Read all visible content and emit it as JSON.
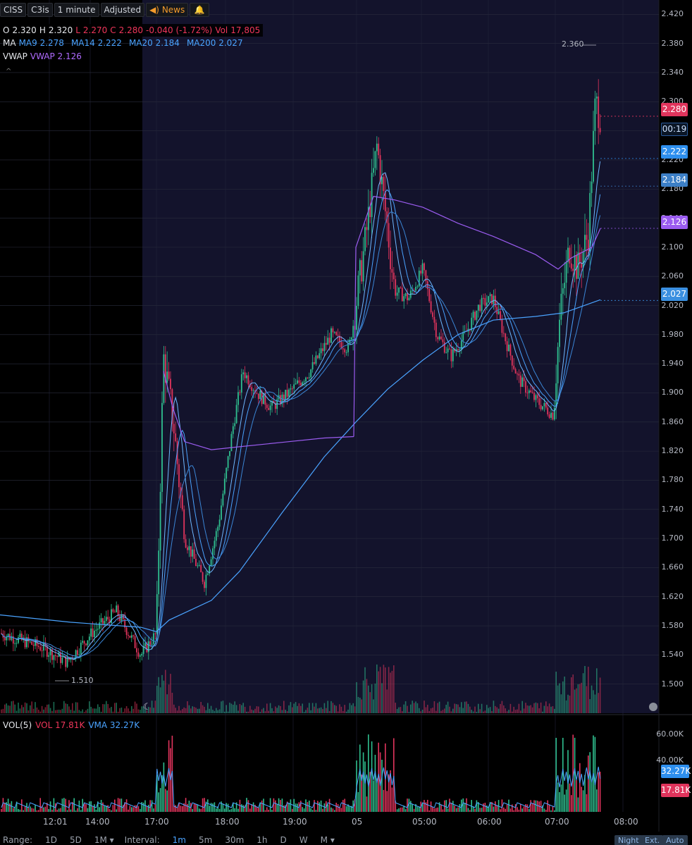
{
  "header": {
    "symbol": "CISS",
    "study_set": "C3is",
    "interval": "1 minute",
    "adjusted": "Adjusted",
    "news": "News"
  },
  "ohlc": {
    "o_label": "O",
    "o": "2.320",
    "h_label": "H",
    "h": "2.320",
    "l_label": "L",
    "l": "2.270",
    "c_label": "C",
    "c": "2.280",
    "change": "-0.040 (-1.72%)",
    "vol_label": "Vol",
    "vol": "17,805"
  },
  "ma": {
    "label": "MA",
    "ma9": "MA9 2.278",
    "ma14": "MA14 2.222",
    "ma20": "MA20 2.184",
    "ma200": "MA200 2.027"
  },
  "vwap": {
    "label": "VWAP",
    "value": "VWAP 2.126"
  },
  "price_axis": [
    "2.420",
    "2.380",
    "2.340",
    "2.300",
    "2.260",
    "2.220",
    "2.180",
    "2.140",
    "2.100",
    "2.060",
    "2.020",
    "1.980",
    "1.940",
    "1.900",
    "1.860",
    "1.820",
    "1.780",
    "1.740",
    "1.700",
    "1.660",
    "1.620",
    "1.580",
    "1.540",
    "1.500"
  ],
  "price_tags": {
    "close": "2.280",
    "timer": "00:19",
    "ma14": "2.222",
    "ma20": "2.184",
    "vwap": "2.126",
    "ma200": "2.027"
  },
  "annotations": {
    "high": "2.360",
    "low": "1.510"
  },
  "volume": {
    "label": "VOL(5)",
    "vol": "VOL 17.81K",
    "vma": "VMA 32.27K",
    "axis": [
      "60.00K",
      "40.00K"
    ],
    "vma_tag": "32.27K",
    "vol_tag": "17.81K"
  },
  "time_axis": [
    "12:01",
    "14:00",
    "17:00",
    "18:00",
    "19:00",
    "05",
    "05:00",
    "06:00",
    "07:00",
    "08:00"
  ],
  "bottom": {
    "range_label": "Range:",
    "ranges": [
      "1D",
      "5D",
      "1M ▾"
    ],
    "interval_label": "Interval:",
    "intervals": [
      "1m",
      "5m",
      "30m",
      "1h",
      "D",
      "W",
      "M ▾"
    ],
    "selected_interval": "1m",
    "right_buttons": [
      "Night",
      "Ext.",
      "Auto"
    ]
  },
  "colors": {
    "up": "#2fbf8f",
    "down": "#e0345c",
    "ma": "#4aa3ff",
    "vwap": "#9b5cf0",
    "session_bg": "#13132c"
  },
  "chart_data": {
    "type": "candlestick",
    "symbol": "CISS",
    "y_range": [
      1.46,
      2.43
    ],
    "series": [
      {
        "name": "MA9 2.278"
      },
      {
        "name": "MA14 2.222"
      },
      {
        "name": "MA20 2.184"
      },
      {
        "name": "MA200 2.027"
      },
      {
        "name": "VWAP 2.126"
      }
    ],
    "close_path_x": [
      "12:01",
      "14:00",
      "16:50",
      "17:00",
      "17:10",
      "17:45",
      "18:10",
      "18:40",
      "19:10",
      "19:40",
      "05 start",
      "05:40",
      "05:50",
      "06:20",
      "06:40",
      "07:00",
      "07:10",
      "07:20",
      "07:35",
      "07:45"
    ],
    "close_path_y": [
      1.57,
      1.56,
      1.54,
      1.58,
      1.94,
      1.66,
      1.88,
      1.91,
      1.97,
      1.96,
      2.05,
      2.23,
      2.02,
      2.05,
      1.97,
      2.03,
      1.88,
      1.87,
      2.09,
      2.28
    ],
    "high": 2.36,
    "low": 1.51
  }
}
